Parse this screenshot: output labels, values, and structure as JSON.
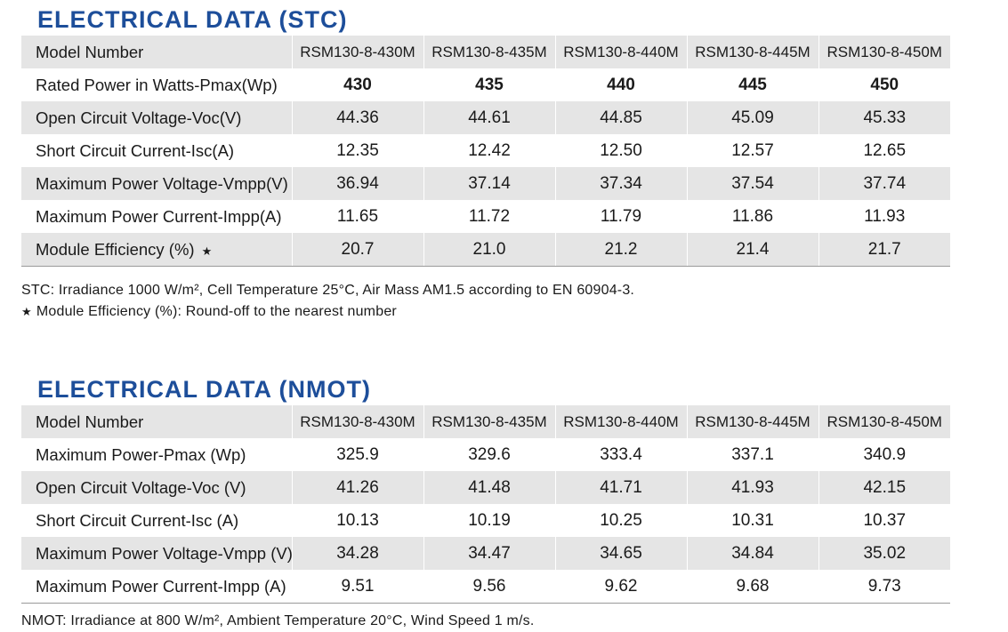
{
  "stc": {
    "title": "ELECTRICAL DATA (STC)",
    "header": {
      "label": "Model Number",
      "models": [
        "RSM130-8-430M",
        "RSM130-8-435M",
        "RSM130-8-440M",
        "RSM130-8-445M",
        "RSM130-8-450M"
      ]
    },
    "rows": [
      {
        "label": "Rated Power in Watts-Pmax(Wp)",
        "values": [
          "430",
          "435",
          "440",
          "445",
          "450"
        ],
        "bold": true
      },
      {
        "label": "Open Circuit Voltage-Voc(V)",
        "values": [
          "44.36",
          "44.61",
          "44.85",
          "45.09",
          "45.33"
        ]
      },
      {
        "label": "Short Circuit Current-Isc(A)",
        "values": [
          "12.35",
          "12.42",
          "12.50",
          "12.57",
          "12.65"
        ]
      },
      {
        "label": "Maximum Power Voltage-Vmpp(V)",
        "values": [
          "36.94",
          "37.14",
          "37.34",
          "37.54",
          "37.74"
        ]
      },
      {
        "label": "Maximum Power Current-Impp(A)",
        "values": [
          "11.65",
          "11.72",
          "11.79",
          "11.86",
          "11.93"
        ]
      },
      {
        "label": "Module Efficiency (%)",
        "star": "★",
        "values": [
          "20.7",
          "21.0",
          "21.2",
          "21.4",
          "21.7"
        ]
      }
    ],
    "note1": "STC: Irradiance 1000 W/m², Cell Temperature 25°C, Air Mass AM1.5 according to EN 60904-3.",
    "note2_star": "★",
    "note2": "Module Efficiency (%): Round-off to the nearest number"
  },
  "nmot": {
    "title": "ELECTRICAL DATA (NMOT)",
    "header": {
      "label": "Model Number",
      "models": [
        "RSM130-8-430M",
        "RSM130-8-435M",
        "RSM130-8-440M",
        "RSM130-8-445M",
        "RSM130-8-450M"
      ]
    },
    "rows": [
      {
        "label": "Maximum Power-Pmax (Wp)",
        "values": [
          "325.9",
          "329.6",
          "333.4",
          "337.1",
          "340.9"
        ]
      },
      {
        "label": "Open Circuit Voltage-Voc (V)",
        "values": [
          "41.26",
          "41.48",
          "41.71",
          "41.93",
          "42.15"
        ]
      },
      {
        "label": "Short Circuit Current-Isc (A)",
        "values": [
          "10.13",
          "10.19",
          "10.25",
          "10.31",
          "10.37"
        ]
      },
      {
        "label": "Maximum Power Voltage-Vmpp (V)",
        "values": [
          "34.28",
          "34.47",
          "34.65",
          "34.84",
          "35.02"
        ]
      },
      {
        "label": "Maximum Power Current-Impp (A)",
        "values": [
          "9.51",
          "9.56",
          "9.62",
          "9.68",
          "9.73"
        ]
      }
    ],
    "note1": "NMOT: Irradiance at 800 W/m², Ambient Temperature 20°C, Wind Speed 1 m/s."
  },
  "colors": {
    "title": "#1d4e9a",
    "shaded_row": "#e5e5e5",
    "text": "#1a1a1a",
    "rule": "#9a9a9a"
  }
}
